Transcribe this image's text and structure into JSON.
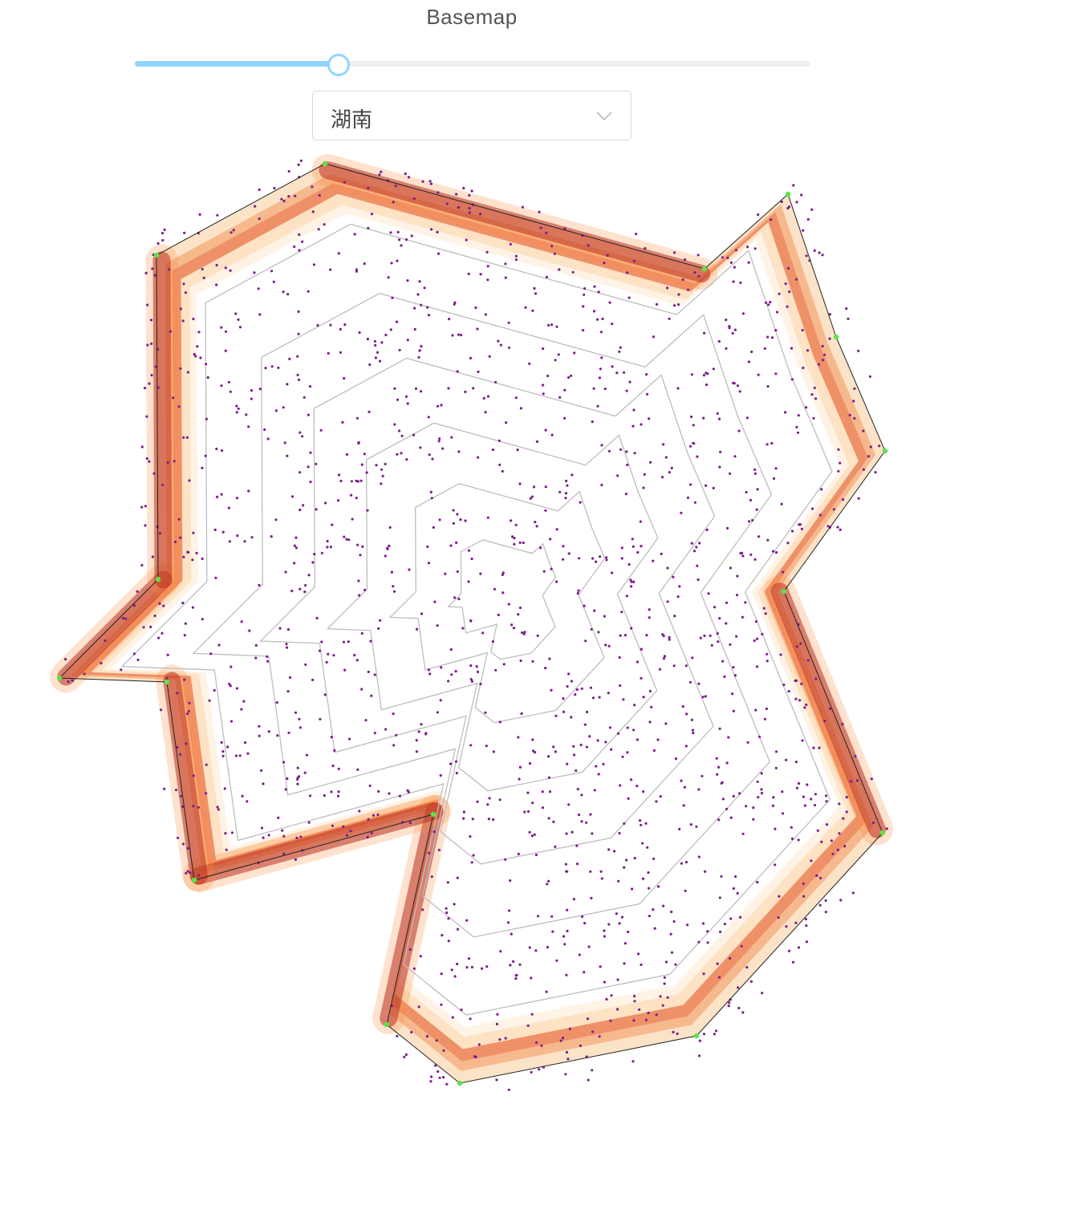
{
  "header": {
    "title": "Basemap"
  },
  "slider": {
    "value": 0.3
  },
  "region_select": {
    "selected": "湖南",
    "icon": "chevron-down-icon"
  },
  "colors": {
    "ramp": [
      "#fff5eb",
      "#fdd0a2",
      "#fd8d3c",
      "#d94801",
      "#a50f15"
    ],
    "contour": "#bdbdbd",
    "points": "#7a1f8a",
    "vertices": "#5de34a",
    "outline": "#222222",
    "slider_accent": "#91d5ff"
  }
}
